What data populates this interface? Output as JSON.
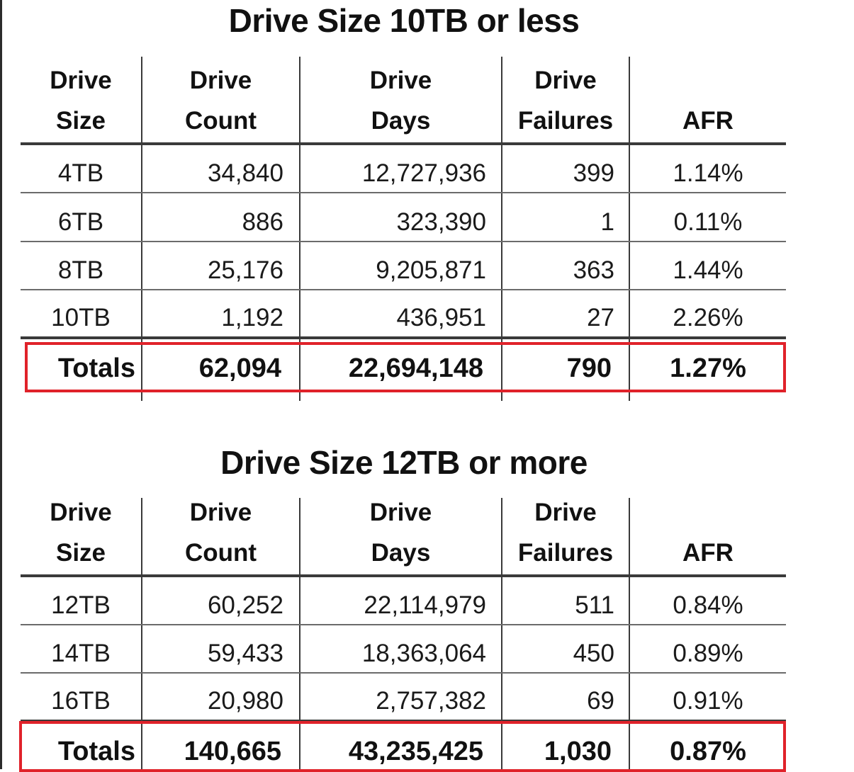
{
  "tables": [
    {
      "title": "Drive Size 10TB or less",
      "headers": [
        {
          "line1": "Drive",
          "line2": "Size"
        },
        {
          "line1": "Drive",
          "line2": "Count"
        },
        {
          "line1": "Drive",
          "line2": "Days"
        },
        {
          "line1": "Drive",
          "line2": "Failures"
        },
        {
          "line1": "",
          "line2": "AFR"
        }
      ],
      "rows": [
        [
          "4TB",
          "34,840",
          "12,727,936",
          "399",
          "1.14%"
        ],
        [
          "6TB",
          "886",
          "323,390",
          "1",
          "0.11%"
        ],
        [
          "8TB",
          "25,176",
          "9,205,871",
          "363",
          "1.44%"
        ],
        [
          "10TB",
          "1,192",
          "436,951",
          "27",
          "2.26%"
        ]
      ],
      "totals": [
        "Totals",
        "62,094",
        "22,694,148",
        "790",
        "1.27%"
      ],
      "highlight_color": "#e0222a"
    },
    {
      "title": "Drive Size 12TB or more",
      "headers": [
        {
          "line1": "Drive",
          "line2": "Size"
        },
        {
          "line1": "Drive",
          "line2": "Count"
        },
        {
          "line1": "Drive",
          "line2": "Days"
        },
        {
          "line1": "Drive",
          "line2": "Failures"
        },
        {
          "line1": "",
          "line2": "AFR"
        }
      ],
      "rows": [
        [
          "12TB",
          "60,252",
          "22,114,979",
          "511",
          "0.84%"
        ],
        [
          "14TB",
          "59,433",
          "18,363,064",
          "450",
          "0.89%"
        ],
        [
          "16TB",
          "20,980",
          "2,757,382",
          "69",
          "0.91%"
        ]
      ],
      "totals": [
        "Totals",
        "140,665",
        "43,235,425",
        "1,030",
        "0.87%"
      ],
      "highlight_color": "#e0222a"
    }
  ]
}
